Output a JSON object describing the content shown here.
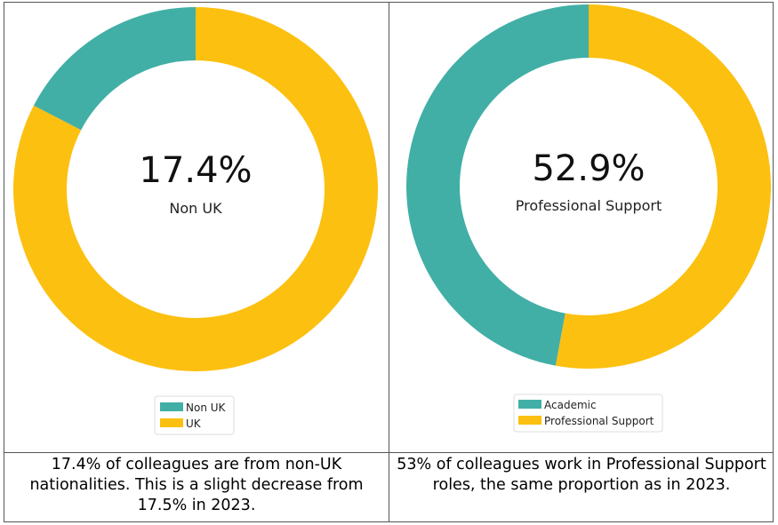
{
  "colors": {
    "teal": "#41AFA6",
    "yellow": "#FCC010"
  },
  "chart_data": [
    {
      "type": "pie",
      "donut": true,
      "categories": [
        "Non UK",
        "UK"
      ],
      "values": [
        17.4,
        82.6
      ],
      "center_value": "17.4%",
      "center_label": "Non UK",
      "legend": [
        "Non UK",
        "UK"
      ],
      "legend_position": "bottom",
      "caption": "17.4% of colleagues are from non-UK nationalities. This is a slight decrease from 17.5% in 2023."
    },
    {
      "type": "pie",
      "donut": true,
      "categories": [
        "Academic",
        "Professional Support"
      ],
      "values": [
        47.1,
        52.9
      ],
      "center_value": "52.9%",
      "center_label": "Professional Support",
      "legend": [
        "Academic",
        "Professional Support"
      ],
      "legend_position": "bottom",
      "caption": "53% of colleagues work in Professional Support roles, the same proportion as in 2023."
    }
  ]
}
